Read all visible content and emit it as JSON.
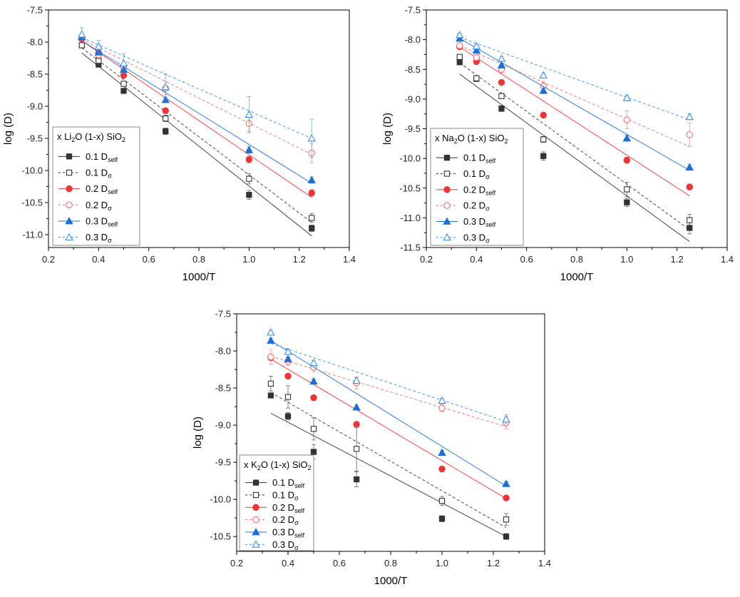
{
  "chart_data": [
    {
      "id": "li",
      "type": "scatter",
      "title": "",
      "xlabel": "1000/T",
      "ylabel": "log (D)",
      "xlim": [
        0.2,
        1.4
      ],
      "ylim": [
        -11.2,
        -7.5
      ],
      "xticks": [
        "0.2",
        "0.4",
        "0.6",
        "0.8",
        "1.0",
        "1.2",
        "1.4"
      ],
      "yticks": [
        "-11.0",
        "-10.5",
        "-10.0",
        "-9.5",
        "-9.0",
        "-8.5",
        "-8.0",
        "-7.5"
      ],
      "legend_title": {
        "prefix": "x Li",
        "sub1": "2",
        "mid": "O (1-x) SiO",
        "sub2": "2"
      },
      "legend_position": "left",
      "x": [
        0.333,
        0.4,
        0.5,
        0.667,
        1.0,
        1.25
      ],
      "series": [
        {
          "name": "0.1 D",
          "subscript": "self",
          "color": "#333333",
          "marker": "square",
          "filled": true,
          "dashed": false,
          "values": [
            -8.05,
            -8.35,
            -8.76,
            -9.39,
            -10.38,
            -10.9
          ],
          "errors": [
            0.03,
            0.03,
            0.03,
            0.05,
            0.07,
            0.05
          ],
          "fit": [
            [
              0.333,
              -8.17
            ],
            [
              1.25,
              -11.02
            ]
          ]
        },
        {
          "name": "0.1 D",
          "subscript": "σ",
          "color": "#333333",
          "marker": "square",
          "filled": false,
          "dashed": true,
          "values": [
            -8.05,
            -8.29,
            -8.65,
            -9.19,
            -10.13,
            -10.74
          ],
          "errors": [
            0.03,
            0.03,
            0.04,
            0.05,
            0.08,
            0.07
          ],
          "fit": [
            [
              0.333,
              -8.09
            ],
            [
              1.25,
              -10.81
            ]
          ]
        },
        {
          "name": "0.2 D",
          "subscript": "self",
          "color": "#e8363a",
          "marker": "circle",
          "filled": true,
          "dashed": false,
          "values": [
            -7.95,
            -8.17,
            -8.52,
            -9.07,
            -9.83,
            -10.35
          ],
          "errors": [
            0.03,
            0.03,
            0.03,
            0.04,
            0.05,
            0.05
          ],
          "fit": [
            [
              0.333,
              -7.98
            ],
            [
              1.25,
              -10.42
            ]
          ]
        },
        {
          "name": "0.2 D",
          "subscript": "σ",
          "color": "#f07070",
          "marker": "circle",
          "filled": false,
          "dashed": true,
          "values": [
            -7.92,
            -8.2,
            -8.4,
            -8.72,
            -9.27,
            -9.73
          ],
          "errors": [
            0.05,
            0.06,
            0.08,
            0.1,
            0.12,
            0.15
          ],
          "fit": [
            [
              0.333,
              -7.96
            ],
            [
              1.25,
              -9.75
            ]
          ]
        },
        {
          "name": "0.3 D",
          "subscript": "self",
          "color": "#1f6fd0",
          "marker": "triangle",
          "filled": true,
          "dashed": false,
          "values": [
            -7.92,
            -8.16,
            -8.43,
            -8.9,
            -9.68,
            -10.15
          ],
          "errors": [
            0.03,
            0.03,
            0.03,
            0.04,
            0.05,
            0.05
          ],
          "fit": [
            [
              0.333,
              -7.98
            ],
            [
              1.25,
              -10.2
            ]
          ]
        },
        {
          "name": "0.3 D",
          "subscript": "σ",
          "color": "#3a8ee6",
          "marker": "triangle",
          "filled": false,
          "dashed": true,
          "values": [
            -7.88,
            -8.07,
            -8.33,
            -8.7,
            -9.13,
            -9.5
          ],
          "errors": [
            0.1,
            0.1,
            0.15,
            0.2,
            0.28,
            0.3
          ],
          "fit": [
            [
              0.333,
              -7.93
            ],
            [
              1.25,
              -9.5
            ]
          ]
        }
      ]
    },
    {
      "id": "na",
      "type": "scatter",
      "title": "",
      "xlabel": "1000/T",
      "ylabel": "log (D)",
      "xlim": [
        0.2,
        1.4
      ],
      "ylim": [
        -11.5,
        -7.5
      ],
      "xticks": [
        "0.2",
        "0.4",
        "0.6",
        "0.8",
        "1.0",
        "1.2",
        "1.4"
      ],
      "yticks": [
        "-11.5",
        "-11.0",
        "-10.5",
        "-10.0",
        "-9.5",
        "-9.0",
        "-8.5",
        "-8.0",
        "-7.5"
      ],
      "legend_title": {
        "prefix": "x Na",
        "sub1": "2",
        "mid": "O (1-x) SiO",
        "sub2": "2"
      },
      "legend_position": "left",
      "x": [
        0.333,
        0.4,
        0.5,
        0.667,
        1.0,
        1.25
      ],
      "series": [
        {
          "name": "0.1 D",
          "subscript": "self",
          "color": "#333333",
          "marker": "square",
          "filled": true,
          "dashed": false,
          "values": [
            -8.38,
            -8.66,
            -9.16,
            -9.96,
            -10.74,
            -11.17
          ],
          "errors": [
            0.03,
            0.03,
            0.05,
            0.07,
            0.07,
            0.1
          ],
          "fit": [
            [
              0.333,
              -8.58
            ],
            [
              1.25,
              -11.4
            ]
          ]
        },
        {
          "name": "0.1 D",
          "subscript": "σ",
          "color": "#333333",
          "marker": "square",
          "filled": false,
          "dashed": true,
          "values": [
            -8.29,
            -8.65,
            -8.95,
            -9.68,
            -10.52,
            -11.04
          ],
          "errors": [
            0.03,
            0.03,
            0.04,
            0.05,
            0.12,
            0.1
          ],
          "fit": [
            [
              0.333,
              -8.39
            ],
            [
              1.25,
              -11.2
            ]
          ]
        },
        {
          "name": "0.2 D",
          "subscript": "self",
          "color": "#e8363a",
          "marker": "circle",
          "filled": true,
          "dashed": false,
          "values": [
            -8.12,
            -8.37,
            -8.72,
            -9.27,
            -10.03,
            -10.48
          ],
          "errors": [
            0.03,
            0.03,
            0.03,
            0.04,
            0.05,
            0.05
          ],
          "fit": [
            [
              0.333,
              -8.12
            ],
            [
              1.25,
              -10.63
            ]
          ]
        },
        {
          "name": "0.2 D",
          "subscript": "σ",
          "color": "#f07070",
          "marker": "circle",
          "filled": false,
          "dashed": true,
          "values": [
            -8.1,
            -8.3,
            -8.5,
            -8.78,
            -9.35,
            -9.6
          ],
          "errors": [
            0.05,
            0.05,
            0.06,
            0.07,
            0.15,
            0.2
          ],
          "fit": [
            [
              0.333,
              -8.1
            ],
            [
              1.25,
              -9.8
            ]
          ]
        },
        {
          "name": "0.3 D",
          "subscript": "self",
          "color": "#1f6fd0",
          "marker": "triangle",
          "filled": true,
          "dashed": false,
          "values": [
            -7.98,
            -8.18,
            -8.43,
            -8.86,
            -9.66,
            -10.15
          ],
          "errors": [
            0.03,
            0.03,
            0.03,
            0.04,
            0.05,
            0.05
          ],
          "fit": [
            [
              0.333,
              -7.98
            ],
            [
              1.25,
              -10.2
            ]
          ]
        },
        {
          "name": "0.3 D",
          "subscript": "σ",
          "color": "#3a8ee6",
          "marker": "triangle",
          "filled": false,
          "dashed": true,
          "values": [
            -7.92,
            -8.11,
            -8.32,
            -8.6,
            -8.98,
            -9.3
          ],
          "errors": [
            0.03,
            0.03,
            0.03,
            0.04,
            0.05,
            0.05
          ],
          "fit": [
            [
              0.333,
              -7.96
            ],
            [
              1.25,
              -9.35
            ]
          ]
        }
      ]
    },
    {
      "id": "k",
      "type": "scatter",
      "title": "",
      "xlabel": "1000/T",
      "ylabel": "log (D)",
      "xlim": [
        0.2,
        1.4
      ],
      "ylim": [
        -10.7,
        -7.5
      ],
      "xticks": [
        "0.2",
        "0.4",
        "0.6",
        "0.8",
        "1.0",
        "1.2",
        "1.4"
      ],
      "yticks": [
        "-10.5",
        "-10.0",
        "-9.5",
        "-9.0",
        "-8.5",
        "-8.0",
        "-7.5"
      ],
      "legend_title": {
        "prefix": "x K",
        "sub1": "2",
        "mid": "O (1-x) SiO",
        "sub2": "2"
      },
      "legend_position": "bottom-left",
      "x": [
        0.333,
        0.4,
        0.5,
        0.667,
        1.0,
        1.25
      ],
      "series": [
        {
          "name": "0.1 D",
          "subscript": "self",
          "color": "#333333",
          "marker": "square",
          "filled": true,
          "dashed": false,
          "values": [
            -8.6,
            -8.88,
            -9.36,
            -9.73,
            -10.26,
            -10.5
          ],
          "errors": [
            0.03,
            0.05,
            0.1,
            0.1,
            0.04,
            0.04
          ],
          "fit": [
            [
              0.333,
              -8.84
            ],
            [
              1.25,
              -10.5
            ]
          ]
        },
        {
          "name": "0.1 D",
          "subscript": "σ",
          "color": "#333333",
          "marker": "square",
          "filled": false,
          "dashed": true,
          "values": [
            -8.44,
            -8.62,
            -9.05,
            -9.32,
            -10.02,
            -10.27
          ],
          "errors": [
            0.1,
            0.15,
            0.15,
            0.3,
            0.06,
            0.08
          ],
          "fit": [
            [
              0.333,
              -8.56
            ],
            [
              1.25,
              -10.38
            ]
          ]
        },
        {
          "name": "0.2 D",
          "subscript": "self",
          "color": "#e8363a",
          "marker": "circle",
          "filled": true,
          "dashed": false,
          "values": [
            -8.09,
            -8.34,
            -8.63,
            -8.99,
            -9.59,
            -9.98
          ],
          "errors": [
            0.03,
            0.03,
            0.03,
            0.04,
            0.03,
            0.03
          ],
          "fit": [
            [
              0.333,
              -8.11
            ],
            [
              1.25,
              -9.99
            ]
          ]
        },
        {
          "name": "0.2 D",
          "subscript": "σ",
          "color": "#f07070",
          "marker": "circle",
          "filled": false,
          "dashed": true,
          "values": [
            -8.08,
            -8.14,
            -8.22,
            -8.43,
            -8.77,
            -8.97
          ],
          "errors": [
            0.1,
            0.06,
            0.06,
            0.08,
            0.05,
            0.08
          ],
          "fit": [
            [
              0.333,
              -8.07
            ],
            [
              1.25,
              -9.02
            ]
          ]
        },
        {
          "name": "0.3 D",
          "subscript": "self",
          "color": "#1f6fd0",
          "marker": "triangle",
          "filled": true,
          "dashed": false,
          "values": [
            -7.86,
            -8.11,
            -8.41,
            -8.76,
            -9.37,
            -9.79
          ],
          "errors": [
            0.03,
            0.03,
            0.03,
            0.03,
            0.03,
            0.03
          ],
          "fit": [
            [
              0.333,
              -7.86
            ],
            [
              1.25,
              -9.82
            ]
          ]
        },
        {
          "name": "0.3 D",
          "subscript": "σ",
          "color": "#3a8ee6",
          "marker": "triangle",
          "filled": false,
          "dashed": true,
          "values": [
            -7.75,
            -8.01,
            -8.16,
            -8.4,
            -8.67,
            -8.92
          ],
          "errors": [
            0.03,
            0.03,
            0.03,
            0.04,
            0.03,
            0.06
          ],
          "fit": [
            [
              0.333,
              -7.9
            ],
            [
              1.25,
              -8.95
            ]
          ]
        }
      ]
    }
  ]
}
